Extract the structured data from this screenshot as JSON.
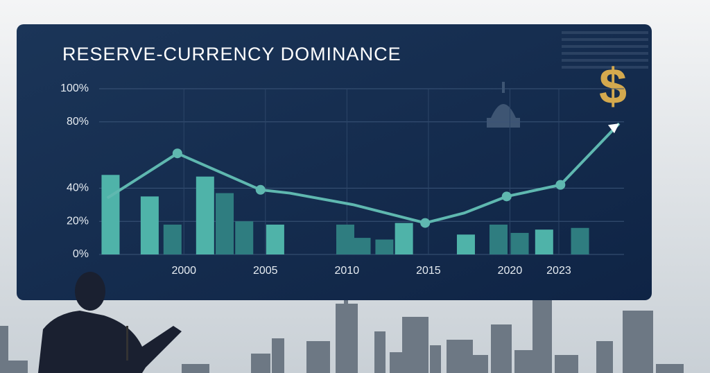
{
  "chart_data": {
    "type": "combo",
    "title": "RESERVE-CURRENCY DOMINANCE",
    "annotation": "$",
    "xlim": [
      1994.8,
      2027
    ],
    "xticks": [
      2000,
      2005,
      2010,
      2015,
      2020,
      2023
    ],
    "ylim": [
      0,
      100
    ],
    "yticks": [
      {
        "value": 100,
        "label": "100%"
      },
      {
        "value": 80,
        "label": "80%"
      },
      {
        "value": 40,
        "label": "40%"
      },
      {
        "value": 20,
        "label": "20%"
      },
      {
        "value": 0,
        "label": "0%"
      }
    ],
    "grid": true,
    "series": [
      {
        "type": "bar",
        "color": "#4fb3a9",
        "colors": [
          "#4fb3a9",
          "#4fb3a9",
          "#2f7d80",
          "#4fb3a9",
          "#2f7d80",
          "#2f7d80",
          "#4fb3a9",
          "#2f7d80",
          "#2f7d80",
          "#2f7d80",
          "#4fb3a9",
          "#4fb3a9",
          "#2f7d80",
          "#2f7d80",
          "#4fb3a9",
          "#2f7d80"
        ],
        "x": [
          1995.5,
          1997.9,
          1999.3,
          2001.3,
          2002.5,
          2003.7,
          2005.6,
          2009.9,
          2010.9,
          2012.3,
          2013.5,
          2017.3,
          2019.3,
          2020.6,
          2022.1,
          2024.3
        ],
        "values": [
          48,
          35,
          18,
          47,
          37,
          20,
          18,
          18,
          10,
          9,
          19,
          12,
          18,
          13,
          15,
          16
        ]
      },
      {
        "type": "line",
        "color": "#5fb8b0",
        "x": [
          1995.3,
          1999.6,
          2004.7,
          2006.5,
          2010.4,
          2014.8,
          2017.2,
          2019.8,
          2023.1,
          2026.7
        ],
        "values": [
          34,
          61,
          39,
          37,
          30,
          19,
          25,
          35,
          42,
          79
        ],
        "markers": [
          1,
          2,
          5,
          7,
          8
        ]
      }
    ]
  }
}
